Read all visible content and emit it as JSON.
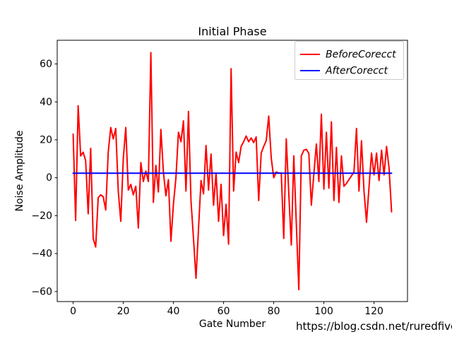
{
  "figure": {
    "watermark": "https://blog.csdn.net/ruredfive"
  },
  "chart_data": {
    "type": "line",
    "title": "Initial Phase",
    "xlabel": "Gate Number",
    "ylabel": "Noise Amplitude",
    "xlim": [
      -6.35,
      133.35
    ],
    "ylim": [
      -65.3,
      72.5
    ],
    "xticks": [
      0,
      20,
      40,
      60,
      80,
      100,
      120
    ],
    "yticks": [
      -60,
      -40,
      -20,
      0,
      20,
      40,
      60
    ],
    "grid": false,
    "legend_position": "upper right",
    "x_description": "gate index 0..127, step 1 (implicit when series has no x array)",
    "series": [
      {
        "name": "BeforeCorecct",
        "color": "#ff0000",
        "y": [
          23,
          -22.5,
          38,
          11.5,
          13.5,
          9,
          -19,
          15.5,
          -32,
          -36.5,
          -10.5,
          -9,
          -10,
          -17,
          13.5,
          26.5,
          20.5,
          26,
          -7,
          -23,
          10,
          26.5,
          -6.5,
          -3.5,
          -9,
          -4.5,
          -26.5,
          8,
          -2,
          3.5,
          -2,
          66,
          -13,
          6.5,
          -7.5,
          25.5,
          3,
          -9.5,
          -1,
          -33.5,
          -14,
          0,
          24,
          19,
          30,
          -7,
          35,
          -12,
          -32,
          -53,
          -27,
          -1.5,
          -8.5,
          17,
          -6.5,
          12.5,
          -14.5,
          2.5,
          -23,
          -3.5,
          -30.5,
          -14,
          -35,
          57.5,
          -7,
          13.5,
          8,
          16.5,
          19,
          22,
          19,
          21,
          18.5,
          21.5,
          -12,
          13,
          16.5,
          19.5,
          32.5,
          10.5,
          0,
          3,
          2.5,
          2.5,
          -32,
          20.5,
          -8,
          -35.5,
          11.5,
          -24,
          -59,
          11.5,
          14.5,
          15,
          12.8,
          -14.5,
          2,
          17.8,
          -2,
          33.5,
          -6,
          24,
          -5.5,
          29.5,
          -12,
          16,
          -13,
          11.5,
          -4.5,
          -3,
          -1,
          1,
          3,
          26,
          -7,
          19.5,
          -7,
          -23.5,
          -5,
          13,
          1.5,
          13,
          -1.5,
          14.5,
          1.5,
          16.5,
          5,
          -18
        ]
      },
      {
        "name": "AfterCorecct",
        "color": "#0000ff",
        "x": [
          0,
          127
        ],
        "y": [
          2.4,
          2.4
        ]
      }
    ]
  },
  "legend": {
    "items": [
      {
        "label": "BeforeCorecct",
        "color": "#ff0000"
      },
      {
        "label": "AfterCorecct",
        "color": "#0000ff"
      }
    ]
  },
  "colors": {
    "before_line": "#ff0000",
    "after_line": "#0000ff",
    "spine": "#000000",
    "legend_border": "#cccccc",
    "watermark": "#e4e5e7"
  }
}
